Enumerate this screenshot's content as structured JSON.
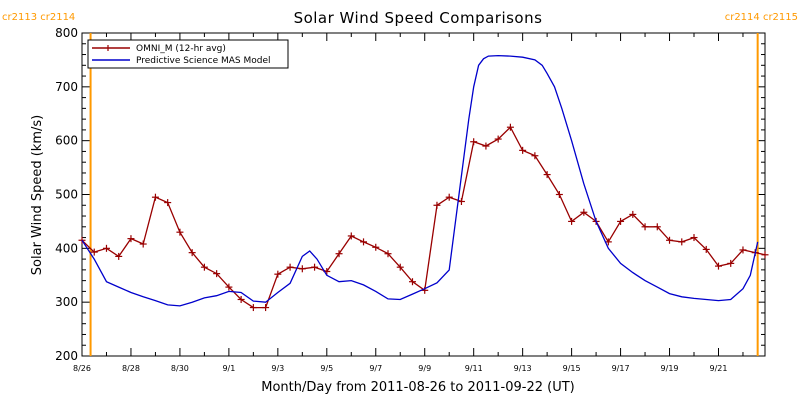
{
  "chart_data": {
    "type": "line",
    "title": "Solar Wind Speed Comparisons",
    "xlabel": "Month/Day from 2011-08-26 to 2011-09-22 (UT)",
    "ylabel": "Solar Wind Speed (km/s)",
    "ylim": [
      200,
      800
    ],
    "yticks": [
      "200",
      "300",
      "400",
      "500",
      "600",
      "700",
      "800"
    ],
    "xlim": [
      0,
      27.9
    ],
    "xticks": [
      {
        "day": 0,
        "label": "8/26"
      },
      {
        "day": 2,
        "label": "8/28"
      },
      {
        "day": 4,
        "label": "8/30"
      },
      {
        "day": 6,
        "label": "9/1"
      },
      {
        "day": 8,
        "label": "9/3"
      },
      {
        "day": 10,
        "label": "9/5"
      },
      {
        "day": 12,
        "label": "9/7"
      },
      {
        "day": 14,
        "label": "9/9"
      },
      {
        "day": 16,
        "label": "9/11"
      },
      {
        "day": 18,
        "label": "9/13"
      },
      {
        "day": 20,
        "label": "9/15"
      },
      {
        "day": 22,
        "label": "9/17"
      },
      {
        "day": 24,
        "label": "9/19"
      },
      {
        "day": 26,
        "label": "9/21"
      }
    ],
    "carrington_markers": [
      {
        "day": 0.35,
        "left_label": "cr2113",
        "right_label": "cr2114"
      },
      {
        "day": 27.6,
        "left_label": "cr2114",
        "right_label": "cr2115"
      }
    ],
    "marker_color": "#FF9900",
    "legend_position": "top-left",
    "series": [
      {
        "name": "OMNI_M (12-hr avg)",
        "color": "#990000",
        "marker": "plus",
        "x": [
          0,
          0.5,
          1,
          1.5,
          2,
          2.5,
          3,
          3.5,
          4,
          4.5,
          5,
          5.5,
          6,
          6.5,
          7,
          7.5,
          8,
          8.5,
          9,
          9.5,
          10,
          10.5,
          11,
          11.5,
          12,
          12.5,
          13,
          13.5,
          14,
          14.5,
          15,
          15.5,
          16,
          16.5,
          17,
          17.5,
          18,
          18.5,
          19,
          19.5,
          20,
          20.5,
          21,
          21.5,
          22,
          22.5,
          23,
          23.5,
          24,
          24.5,
          25,
          25.5,
          26,
          26.5,
          27,
          27.5,
          27.9
        ],
        "y": [
          415,
          393,
          400,
          385,
          418,
          408,
          495,
          485,
          430,
          392,
          365,
          353,
          328,
          305,
          290,
          290,
          352,
          365,
          362,
          365,
          357,
          390,
          423,
          412,
          402,
          390,
          365,
          338,
          322,
          480,
          495,
          487,
          598,
          590,
          603,
          625,
          582,
          572,
          537,
          500,
          450,
          467,
          450,
          412,
          450,
          463,
          440,
          440,
          415,
          412,
          420,
          398,
          367,
          372,
          397,
          392,
          388
        ]
      },
      {
        "name": "Predictive Science MAS Model",
        "color": "#0000CC",
        "marker": "none",
        "x": [
          0,
          0.5,
          1,
          1.5,
          2,
          2.5,
          3,
          3.5,
          4,
          4.5,
          5,
          5.5,
          6,
          6.5,
          7,
          7.5,
          8,
          8.5,
          9,
          9.3,
          9.6,
          10,
          10.5,
          11,
          11.5,
          12,
          12.5,
          13,
          13.5,
          14,
          14.5,
          15,
          15.2,
          15.4,
          15.6,
          15.8,
          16,
          16.2,
          16.4,
          16.6,
          17,
          17.5,
          18,
          18.5,
          18.8,
          19,
          19.3,
          19.6,
          20,
          20.5,
          21,
          21.5,
          22,
          22.5,
          23,
          23.5,
          24,
          24.5,
          25,
          25.5,
          26,
          26.5,
          27,
          27.3,
          27.6
        ],
        "y": [
          415,
          380,
          338,
          328,
          318,
          310,
          303,
          295,
          293,
          300,
          308,
          312,
          320,
          318,
          302,
          300,
          318,
          335,
          385,
          395,
          380,
          350,
          338,
          340,
          332,
          320,
          306,
          305,
          315,
          325,
          336,
          360,
          430,
          500,
          570,
          640,
          700,
          740,
          752,
          757,
          758,
          757,
          755,
          750,
          740,
          725,
          700,
          660,
          600,
          520,
          450,
          400,
          372,
          355,
          340,
          328,
          316,
          310,
          307,
          305,
          303,
          305,
          325,
          350,
          412
        ]
      }
    ]
  }
}
